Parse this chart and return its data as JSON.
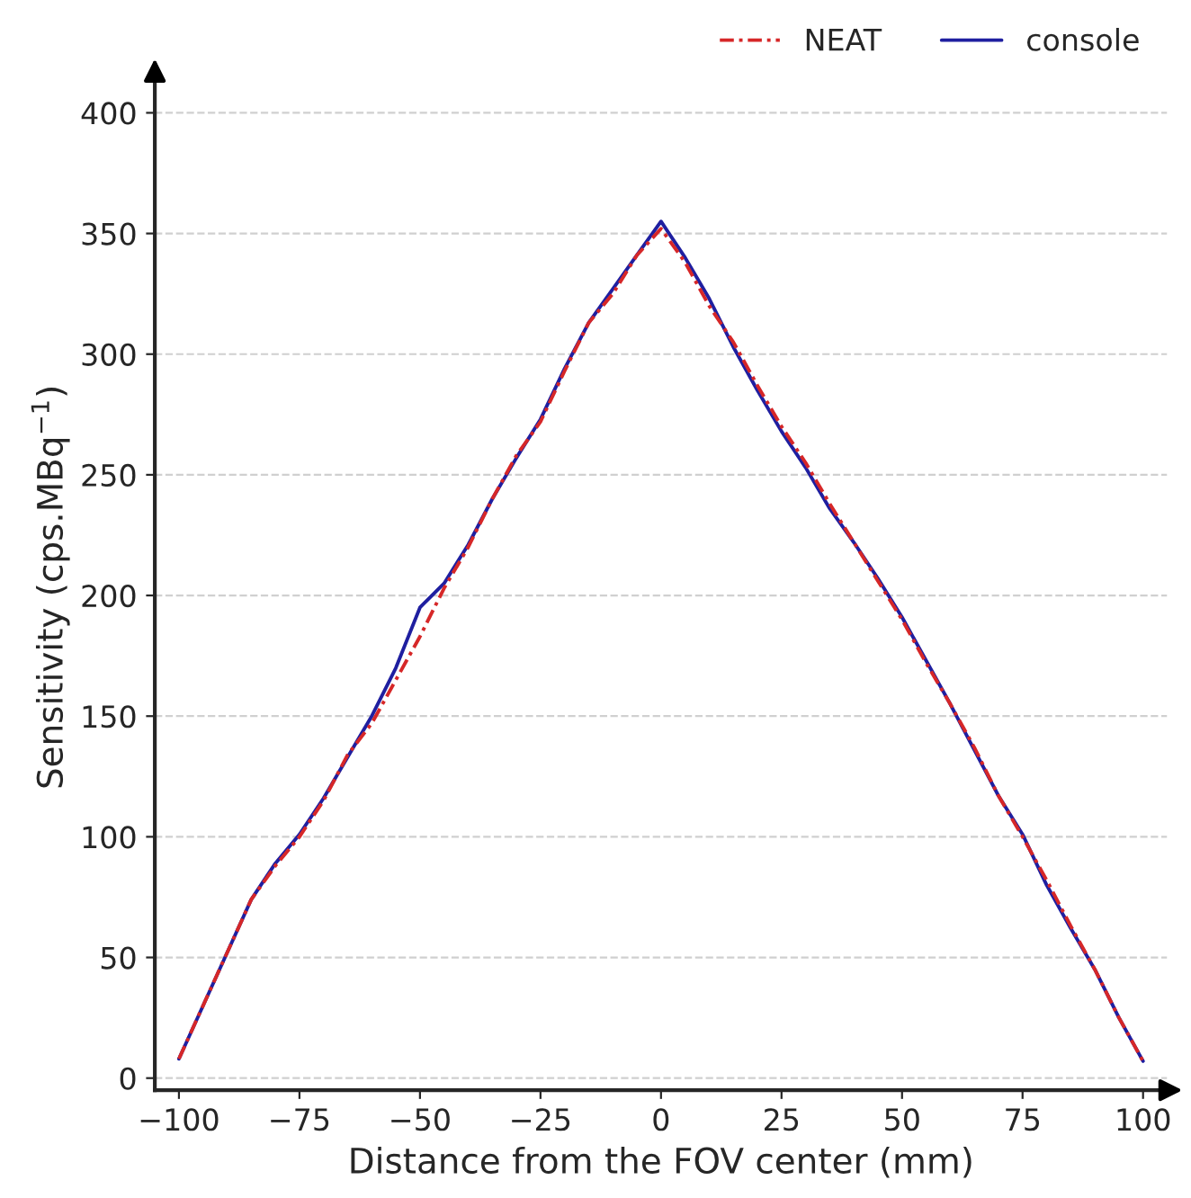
{
  "chart_data": {
    "type": "line",
    "xlabel": "Distance from the FOV center (mm)",
    "ylabel": "Sensitivity (cps.MBq$^{−1}$)",
    "x": [
      -100,
      -95,
      -90,
      -85,
      -80,
      -75,
      -70,
      -65,
      -60,
      -55,
      -50,
      -45,
      -40,
      -35,
      -30,
      -25,
      -20,
      -15,
      -10,
      -5,
      0,
      5,
      10,
      15,
      20,
      25,
      30,
      35,
      40,
      45,
      50,
      55,
      60,
      65,
      70,
      75,
      80,
      85,
      90,
      95,
      100
    ],
    "series": [
      {
        "name": "NEAT",
        "color": "#d62728",
        "line_style": "dashdot",
        "values": [
          8,
          30,
          52,
          74,
          88,
          100,
          115,
          134,
          147,
          165,
          183,
          203,
          220,
          240,
          258,
          272,
          293,
          313,
          325,
          341,
          352,
          338,
          320,
          305,
          287,
          270,
          255,
          238,
          222,
          206,
          190,
          172,
          155,
          137,
          117,
          100,
          82,
          63,
          45,
          25,
          7
        ]
      },
      {
        "name": "console",
        "color": "#1f1fa0",
        "line_style": "solid",
        "values": [
          8,
          30,
          52,
          74,
          89,
          101,
          116,
          133,
          150,
          170,
          195,
          205,
          221,
          240,
          257,
          273,
          294,
          313,
          327,
          341,
          355,
          340,
          323,
          303,
          285,
          268,
          253,
          236,
          222,
          207,
          191,
          173,
          155,
          136,
          117,
          101,
          80,
          62,
          45,
          25,
          7
        ]
      }
    ],
    "xlim": [
      -105,
      105
    ],
    "ylim": [
      -5,
      412
    ],
    "xticks": [
      -100,
      -75,
      -50,
      -25,
      0,
      25,
      50,
      75,
      100
    ],
    "yticks": [
      0,
      50,
      100,
      150,
      200,
      250,
      300,
      350,
      400
    ],
    "grid": "y",
    "legend": "top right"
  }
}
